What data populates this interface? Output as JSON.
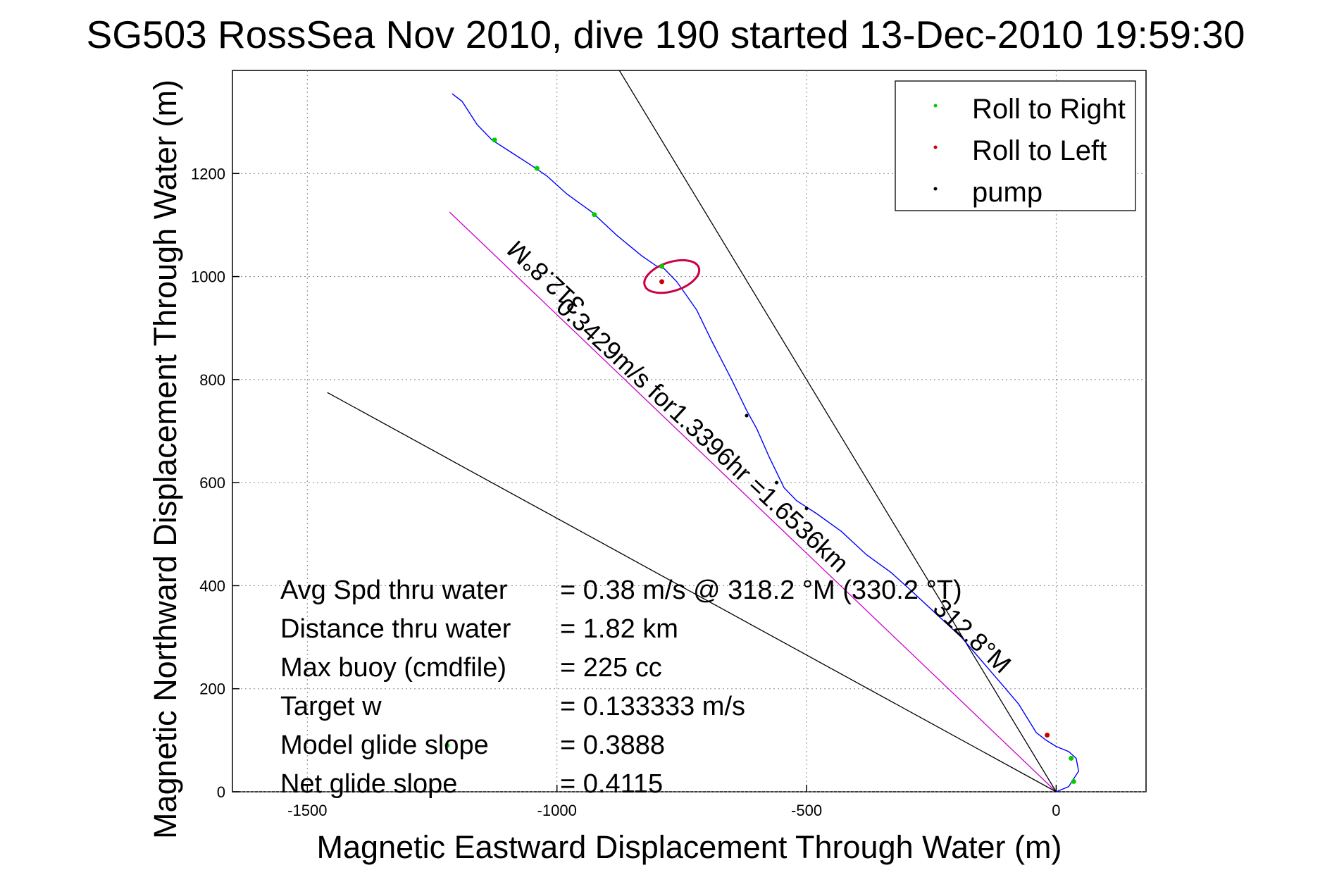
{
  "chart_data": {
    "type": "line",
    "title": "SG503 RossSea Nov 2010, dive 190 started 13-Dec-2010 19:59:30",
    "xlabel": "Magnetic Eastward Displacement Through Water (m)",
    "ylabel": "Magnetic Northward Displacement Through Water (m)",
    "xlim": [
      -1650,
      180
    ],
    "ylim": [
      0,
      1400
    ],
    "xticks": [
      -1500,
      -1000,
      -500,
      0
    ],
    "yticks": [
      0,
      200,
      400,
      600,
      800,
      1000,
      1200
    ],
    "grid": true,
    "legend_position": "top-right",
    "legend": [
      {
        "label": "Roll to Right",
        "color": "#00cc00"
      },
      {
        "label": "Roll to Left",
        "color": "#cc0000"
      },
      {
        "label": "pump",
        "color": "#000000"
      }
    ],
    "track": {
      "color": "#0000ff",
      "points": [
        [
          0,
          0
        ],
        [
          25,
          10
        ],
        [
          45,
          40
        ],
        [
          40,
          65
        ],
        [
          25,
          78
        ],
        [
          0,
          88
        ],
        [
          -20,
          100
        ],
        [
          -40,
          115
        ],
        [
          -75,
          170
        ],
        [
          -110,
          210
        ],
        [
          -150,
          255
        ],
        [
          -190,
          300
        ],
        [
          -240,
          345
        ],
        [
          -290,
          390
        ],
        [
          -330,
          425
        ],
        [
          -380,
          460
        ],
        [
          -430,
          505
        ],
        [
          -480,
          540
        ],
        [
          -520,
          565
        ],
        [
          -545,
          590
        ],
        [
          -555,
          610
        ],
        [
          -575,
          650
        ],
        [
          -600,
          705
        ],
        [
          -620,
          740
        ],
        [
          -650,
          800
        ],
        [
          -690,
          875
        ],
        [
          -720,
          935
        ],
        [
          -760,
          990
        ],
        [
          -785,
          1015
        ],
        [
          -800,
          1020
        ],
        [
          -830,
          1040
        ],
        [
          -880,
          1080
        ],
        [
          -930,
          1125
        ],
        [
          -980,
          1160
        ],
        [
          -1020,
          1195
        ],
        [
          -1050,
          1215
        ],
        [
          -1090,
          1240
        ],
        [
          -1130,
          1265
        ],
        [
          -1160,
          1295
        ],
        [
          -1190,
          1340
        ],
        [
          -1210,
          1355
        ]
      ]
    },
    "loop": {
      "cx": -770,
      "cy": 1000,
      "rx": 57,
      "ry": 28,
      "color": "#cc0044"
    },
    "roll_right_points": [
      [
        -1125,
        1265
      ],
      [
        -1040,
        1210
      ],
      [
        -925,
        1120
      ],
      [
        -790,
        1020
      ],
      [
        -1220,
        90
      ],
      [
        35,
        20
      ],
      [
        30,
        65
      ]
    ],
    "roll_left_points": [
      [
        -18,
        110
      ],
      [
        -790,
        990
      ]
    ],
    "pump_points": [
      [
        -620,
        730
      ],
      [
        -560,
        600
      ],
      [
        -500,
        550
      ]
    ],
    "reference_lines": [
      {
        "name": "heading-line",
        "color": "#cc00cc",
        "from": [
          0,
          0
        ],
        "to": [
          -1215,
          1125
        ]
      },
      {
        "name": "bound-line-upper",
        "color": "#000000",
        "from": [
          0,
          0
        ],
        "to": [
          -875,
          1400
        ]
      },
      {
        "name": "bound-line-lower",
        "color": "#000000",
        "from": [
          0,
          0
        ],
        "to": [
          -1460,
          775
        ]
      }
    ],
    "annotations": [
      {
        "text": "312.8°M",
        "at": [
          -1010,
          1010
        ],
        "rotate": 223
      },
      {
        "text": "0.3429m/s for1.3396hr =1.6536km",
        "at": [
          -720,
          680
        ],
        "rotate": 43
      },
      {
        "text": "312.8°M",
        "at": [
          -180,
          290
        ],
        "rotate": 43
      }
    ],
    "stats": [
      {
        "label": "Avg Spd thru water",
        "value": "=  0.38 m/s @ 318.2 °M (330.2 °T)"
      },
      {
        "label": "Distance thru water",
        "value": "=  1.82 km"
      },
      {
        "label": "Max buoy (cmdfile)",
        "value": "= 225 cc"
      },
      {
        "label": "Target w",
        "value": "= 0.133333 m/s"
      },
      {
        "label": "Model glide slope",
        "value": "= 0.3888"
      },
      {
        "label": "Net glide slope",
        "value": "= 0.4115"
      }
    ]
  }
}
